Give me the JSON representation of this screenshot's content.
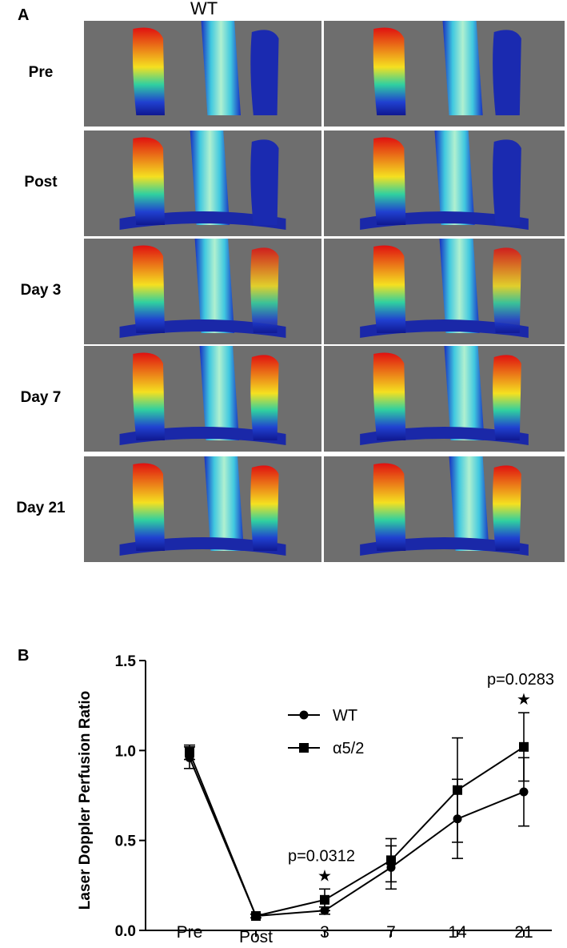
{
  "panel_a": {
    "letter": "A",
    "column_title": "WT",
    "rows": [
      {
        "label": "Pre"
      },
      {
        "label": "Post"
      },
      {
        "label": "Day 3"
      },
      {
        "label": "Day 7"
      },
      {
        "label": "Day 21"
      }
    ]
  },
  "panel_b": {
    "letter": "B"
  },
  "chart_data": {
    "type": "line",
    "categories": [
      "Pre",
      "Post",
      "3",
      "7",
      "14",
      "21"
    ],
    "ylabel": "Laser Doppler Perfusion Ratio",
    "xlabel": "",
    "ylim": [
      0.0,
      1.5
    ],
    "yticks": [
      "0.0",
      "0.5",
      "1.0",
      "1.5"
    ],
    "legend_position": "top-center",
    "series": [
      {
        "name": "WT",
        "marker": "circle",
        "values": [
          0.96,
          0.08,
          0.11,
          0.35,
          0.62,
          0.77
        ],
        "errors": [
          0.06,
          0.01,
          0.02,
          0.12,
          0.22,
          0.19
        ]
      },
      {
        "name": "α5/2",
        "marker": "square",
        "values": [
          0.99,
          0.08,
          0.17,
          0.39,
          0.78,
          1.02
        ],
        "errors": [
          0.04,
          0.01,
          0.06,
          0.12,
          0.29,
          0.19
        ]
      }
    ],
    "annotations": [
      {
        "text": "p=0.0312",
        "category": "3",
        "star": "★"
      },
      {
        "text": "p=0.0283",
        "category": "21",
        "star": "★"
      }
    ]
  }
}
